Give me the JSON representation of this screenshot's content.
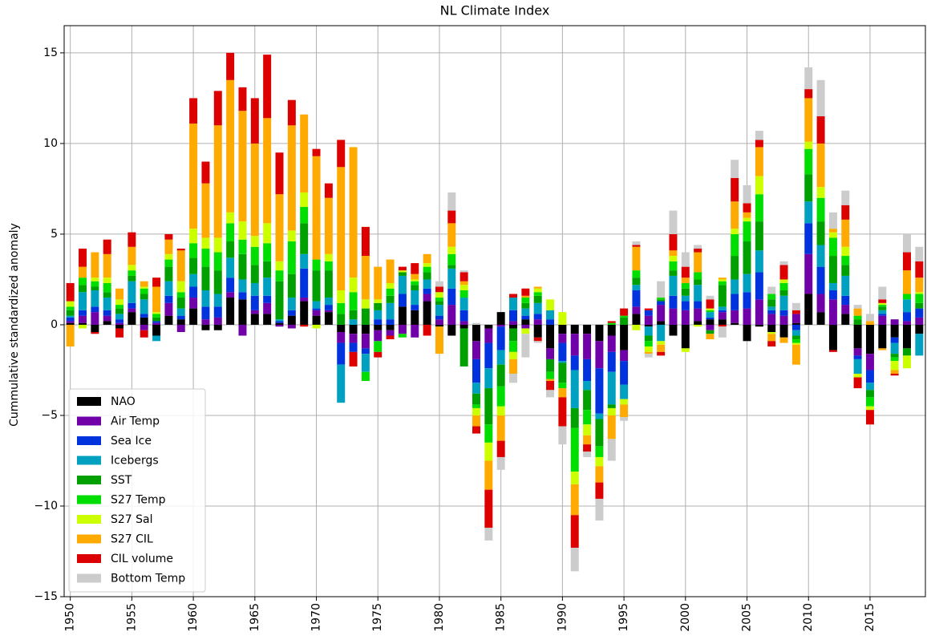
{
  "chart_data": {
    "type": "stacked-bar",
    "title": "NL Climate Index",
    "y_label": "Cummulative standardized anomaly",
    "x": [
      1950,
      1951,
      1952,
      1953,
      1954,
      1955,
      1956,
      1957,
      1958,
      1959,
      1960,
      1961,
      1962,
      1963,
      1964,
      1965,
      1966,
      1967,
      1968,
      1969,
      1970,
      1971,
      1972,
      1973,
      1974,
      1975,
      1976,
      1977,
      1978,
      1979,
      1980,
      1981,
      1982,
      1983,
      1984,
      1985,
      1986,
      1987,
      1988,
      1989,
      1990,
      1991,
      1992,
      1993,
      1994,
      1995,
      1996,
      1997,
      1998,
      1999,
      2000,
      2001,
      2002,
      2003,
      2004,
      2005,
      2006,
      2007,
      2008,
      2009,
      2010,
      2011,
      2012,
      2013,
      2014,
      2015,
      2016,
      2017,
      2018,
      2019
    ],
    "xlim": [
      1949.5,
      2019.5
    ],
    "xticks": [
      1950,
      1955,
      1960,
      1965,
      1970,
      1975,
      1980,
      1985,
      1990,
      1995,
      2000,
      2005,
      2010,
      2015
    ],
    "ylim": [
      -15,
      16.5
    ],
    "yticks": [
      {
        "value": -15,
        "label": "−15"
      },
      {
        "value": -10,
        "label": "−10"
      },
      {
        "value": -5,
        "label": "−5"
      },
      0,
      5,
      10,
      15
    ],
    "grid": true,
    "legend": "lower left",
    "series": [
      {
        "name": "NAO",
        "color": "#000000",
        "values": [
          0.1,
          0.1,
          -0.4,
          0.2,
          -0.2,
          0.7,
          0.4,
          -0.6,
          0.5,
          0.3,
          0.9,
          -0.3,
          -0.3,
          1.5,
          1.4,
          0.6,
          0.6,
          0.1,
          0.5,
          1.3,
          0.5,
          0.7,
          -0.4,
          -0.5,
          -0.5,
          -0.3,
          -0.3,
          1.0,
          0.8,
          1.3,
          -0.1,
          -0.6,
          -0.2,
          -0.9,
          -0.2,
          0.7,
          -0.2,
          0.3,
          -0.7,
          -1.3,
          -0.5,
          -0.5,
          -0.5,
          -0.9,
          -0.6,
          -1.4,
          0.6,
          -0.1,
          0.2,
          -0.6,
          -1.3,
          0.2,
          0.3,
          0.3,
          0.1,
          -0.9,
          -0.1,
          -0.4,
          -0.7,
          0.1,
          1.7,
          0.7,
          -1.4,
          0.6,
          -1.3,
          -1.6,
          -1.3,
          -0.7,
          -1.3,
          -0.5
        ]
      },
      {
        "name": "Air Temp",
        "color": "#7000a8",
        "values": [
          0.1,
          0.4,
          0.7,
          0.3,
          0.1,
          0.2,
          -0.3,
          0.1,
          0.7,
          -0.4,
          0.6,
          0.3,
          0.4,
          0.3,
          -0.6,
          0.2,
          0.6,
          -0.1,
          -0.2,
          0.2,
          0.3,
          0.1,
          -0.6,
          -0.5,
          -0.8,
          -0.6,
          -0.3,
          -0.5,
          -0.7,
          0.4,
          0.3,
          1.1,
          0.2,
          -1.0,
          -0.8,
          -0.1,
          0.2,
          -0.2,
          0.3,
          -0.6,
          -0.5,
          -1.2,
          -1.4,
          -1.5,
          -0.9,
          -0.6,
          0.4,
          0.5,
          0.9,
          0.9,
          0.8,
          0.7,
          -0.3,
          0.4,
          0.7,
          0.9,
          1.4,
          0.6,
          0.5,
          0.5,
          2.2,
          1.0,
          1.4,
          0.5,
          -0.4,
          -0.9,
          0.5,
          0.3,
          0.2,
          0.4
        ]
      },
      {
        "name": "Sea Ice",
        "color": "#0033dd",
        "values": [
          0.2,
          0.3,
          0.3,
          0.3,
          0.2,
          0.3,
          0.2,
          0.1,
          0.4,
          0.2,
          0.6,
          0.7,
          0.6,
          0.8,
          0.4,
          0.8,
          0.4,
          0.1,
          0.3,
          1.6,
          0.1,
          0.3,
          -1.2,
          -0.5,
          -0.3,
          0.3,
          0.3,
          0.7,
          0.3,
          0.3,
          0.2,
          0.9,
          0.6,
          -1.3,
          -1.4,
          -1.3,
          0.6,
          0.2,
          0.3,
          0.3,
          -1.0,
          -0.8,
          -1.2,
          -2.5,
          -1.1,
          -1.3,
          0.9,
          0.3,
          0.2,
          0.7,
          0.5,
          0.4,
          0.1,
          0.1,
          0.9,
          0.9,
          1.5,
          0.2,
          0.3,
          -0.3,
          1.7,
          1.5,
          0.5,
          0.5,
          -0.2,
          -0.7,
          0.1,
          -0.3,
          0.5,
          0.5
        ]
      },
      {
        "name": "Icebergs",
        "color": "#00a0c0",
        "values": [
          0.1,
          1.0,
          0.9,
          0.7,
          0.3,
          1.2,
          0.8,
          -0.3,
          0.8,
          0.4,
          0.7,
          0.9,
          0.7,
          1.1,
          0.7,
          0.7,
          1.0,
          0.1,
          0.7,
          0.8,
          0.4,
          0.4,
          -2.1,
          0.3,
          -1.0,
          0.5,
          0.9,
          1.0,
          0.8,
          0.5,
          0.6,
          1.1,
          0.7,
          -0.6,
          -1.1,
          -0.8,
          0.7,
          0.4,
          0.6,
          0.5,
          -0.1,
          -2.1,
          -0.5,
          -0.3,
          -1.8,
          -0.8,
          0.3,
          -0.5,
          -0.9,
          1.1,
          0.3,
          0.9,
          0.3,
          0.2,
          0.8,
          1.0,
          1.2,
          0.2,
          0.8,
          -0.3,
          1.2,
          1.2,
          0.4,
          1.1,
          -0.8,
          -0.4,
          0.2,
          -0.6,
          0.7,
          -1.2
        ]
      },
      {
        "name": "SST",
        "color": "#00a000",
        "values": [
          0.3,
          0.4,
          0.2,
          0.3,
          0.3,
          0.3,
          0.3,
          0.2,
          0.8,
          0.6,
          0.9,
          1.3,
          1.3,
          0.9,
          1.4,
          1.0,
          0.9,
          2.1,
          1.3,
          1.7,
          1.7,
          1.5,
          0.6,
          0.5,
          0.9,
          0.4,
          0.4,
          0.2,
          0.3,
          0.4,
          0.2,
          0.2,
          -2.1,
          -0.6,
          -2.0,
          -1.2,
          -0.7,
          0.3,
          0.4,
          -0.7,
          -1.1,
          -1.1,
          -1.1,
          -1.5,
          -0.2,
          0.4,
          0.4,
          -0.3,
          0.1,
          0.3,
          0.4,
          0.3,
          -0.2,
          1.2,
          1.3,
          1.8,
          1.6,
          0.4,
          0.3,
          -0.2,
          1.5,
          1.3,
          1.5,
          0.6,
          0.3,
          -0.4,
          0.2,
          -0.2,
          -0.4,
          0.3
        ]
      },
      {
        "name": "S27 Temp",
        "color": "#00dd00",
        "values": [
          0.2,
          0.4,
          0.3,
          0.5,
          0.2,
          0.3,
          0.3,
          0.2,
          0.4,
          0.3,
          0.8,
          1.0,
          1.0,
          1.0,
          0.8,
          1.0,
          1.0,
          0.6,
          1.8,
          0.9,
          0.6,
          0.5,
          0.6,
          1.0,
          -0.5,
          -0.6,
          0.4,
          -0.2,
          0.2,
          0.3,
          0.2,
          0.6,
          0.4,
          -0.2,
          -1.0,
          -1.1,
          -0.6,
          0.3,
          0.2,
          -0.4,
          -0.3,
          -2.4,
          -0.8,
          -0.6,
          0.1,
          0.1,
          0.4,
          -0.3,
          0.1,
          0.5,
          0.3,
          0.4,
          0.1,
          0.2,
          1.2,
          1.1,
          1.5,
          0.3,
          0.4,
          -0.2,
          1.4,
          1.3,
          1.0,
          0.5,
          0.2,
          -0.5,
          0.1,
          -0.2,
          0.3,
          0.5
        ]
      },
      {
        "name": "S27 Sal",
        "color": "#ccff00",
        "values": [
          0.3,
          -0.2,
          0.2,
          0.3,
          0.3,
          0.3,
          0.1,
          0.1,
          0.3,
          0.6,
          0.8,
          0.6,
          0.8,
          0.6,
          1.0,
          0.6,
          1.1,
          0.5,
          0.6,
          0.8,
          -0.2,
          0.4,
          0.7,
          0.8,
          0.5,
          0.2,
          0.3,
          0.1,
          0.1,
          0.2,
          0.3,
          0.4,
          0.3,
          -0.4,
          -1.0,
          -0.5,
          -0.4,
          -0.3,
          0.2,
          0.6,
          0.7,
          -0.7,
          -0.6,
          -0.5,
          -0.4,
          -0.3,
          -0.3,
          -0.3,
          -0.2,
          0.3,
          -0.2,
          -0.1,
          0.1,
          0.1,
          0.3,
          0.2,
          1.0,
          -0.1,
          0.2,
          -0.1,
          0.4,
          0.6,
          0.3,
          0.5,
          -0.2,
          -0.2,
          0.1,
          -0.5,
          -0.7,
          0.1
        ]
      },
      {
        "name": "S27 CIL",
        "color": "#ffaa00",
        "values": [
          -1.2,
          0.6,
          1.4,
          1.3,
          0.6,
          1.0,
          0.3,
          1.4,
          0.8,
          1.7,
          5.8,
          3.0,
          6.2,
          7.3,
          6.1,
          5.1,
          5.8,
          3.7,
          5.8,
          4.3,
          5.7,
          3.1,
          6.8,
          7.2,
          2.4,
          1.8,
          1.3,
          0.0,
          0.3,
          0.5,
          -1.5,
          1.3,
          0.2,
          -0.6,
          -1.6,
          -1.4,
          -0.8,
          0.1,
          0.1,
          -0.1,
          -0.5,
          -1.7,
          -0.5,
          -0.9,
          -1.3,
          -0.7,
          1.3,
          -0.1,
          -0.4,
          0.3,
          0.3,
          1.1,
          -0.3,
          0.1,
          1.5,
          0.3,
          1.6,
          -0.4,
          -0.3,
          -1.1,
          2.4,
          2.4,
          0.2,
          1.5,
          0.4,
          0.2,
          -0.1,
          -0.2,
          1.3,
          0.8
        ]
      },
      {
        "name": "CIL volume",
        "color": "#dd0000",
        "values": [
          1.0,
          1.0,
          -0.1,
          0.8,
          -0.5,
          0.8,
          -0.4,
          0.5,
          0.3,
          0.1,
          1.4,
          1.2,
          1.9,
          1.5,
          1.3,
          2.5,
          3.5,
          2.3,
          1.4,
          -0.1,
          0.4,
          0.8,
          1.5,
          -0.8,
          1.6,
          -0.3,
          -0.2,
          0.2,
          0.6,
          -0.6,
          0.3,
          0.7,
          0.5,
          -0.4,
          -2.1,
          -0.9,
          0.2,
          0.4,
          -0.2,
          -0.5,
          -1.6,
          -1.8,
          -0.4,
          -0.9,
          0.1,
          0.4,
          0.1,
          0.1,
          -0.2,
          0.9,
          0.6,
          0.2,
          0.5,
          -0.1,
          1.3,
          0.5,
          0.4,
          -0.3,
          0.8,
          0.2,
          0.5,
          1.5,
          -0.1,
          0.8,
          -0.6,
          -0.8,
          0.2,
          -0.1,
          1.0,
          0.9
        ]
      },
      {
        "name": "Bottom Temp",
        "color": "#cccccc",
        "values": [
          null,
          null,
          null,
          null,
          null,
          null,
          null,
          null,
          null,
          null,
          null,
          null,
          null,
          null,
          null,
          null,
          null,
          null,
          null,
          null,
          null,
          null,
          null,
          null,
          null,
          null,
          null,
          null,
          null,
          null,
          0.3,
          1.0,
          0.1,
          0.1,
          -0.7,
          -0.7,
          -0.5,
          -1.3,
          -0.1,
          -0.4,
          -1.0,
          -1.3,
          -0.3,
          -1.2,
          -1.2,
          -0.2,
          0.2,
          -0.2,
          0.9,
          1.3,
          0.8,
          0.2,
          0.2,
          -0.6,
          1.0,
          1.0,
          0.5,
          0.4,
          0.2,
          0.4,
          1.2,
          2.0,
          0.9,
          0.8,
          0.2,
          0.4,
          0.7,
          0.0,
          1.0,
          0.8
        ]
      }
    ]
  }
}
